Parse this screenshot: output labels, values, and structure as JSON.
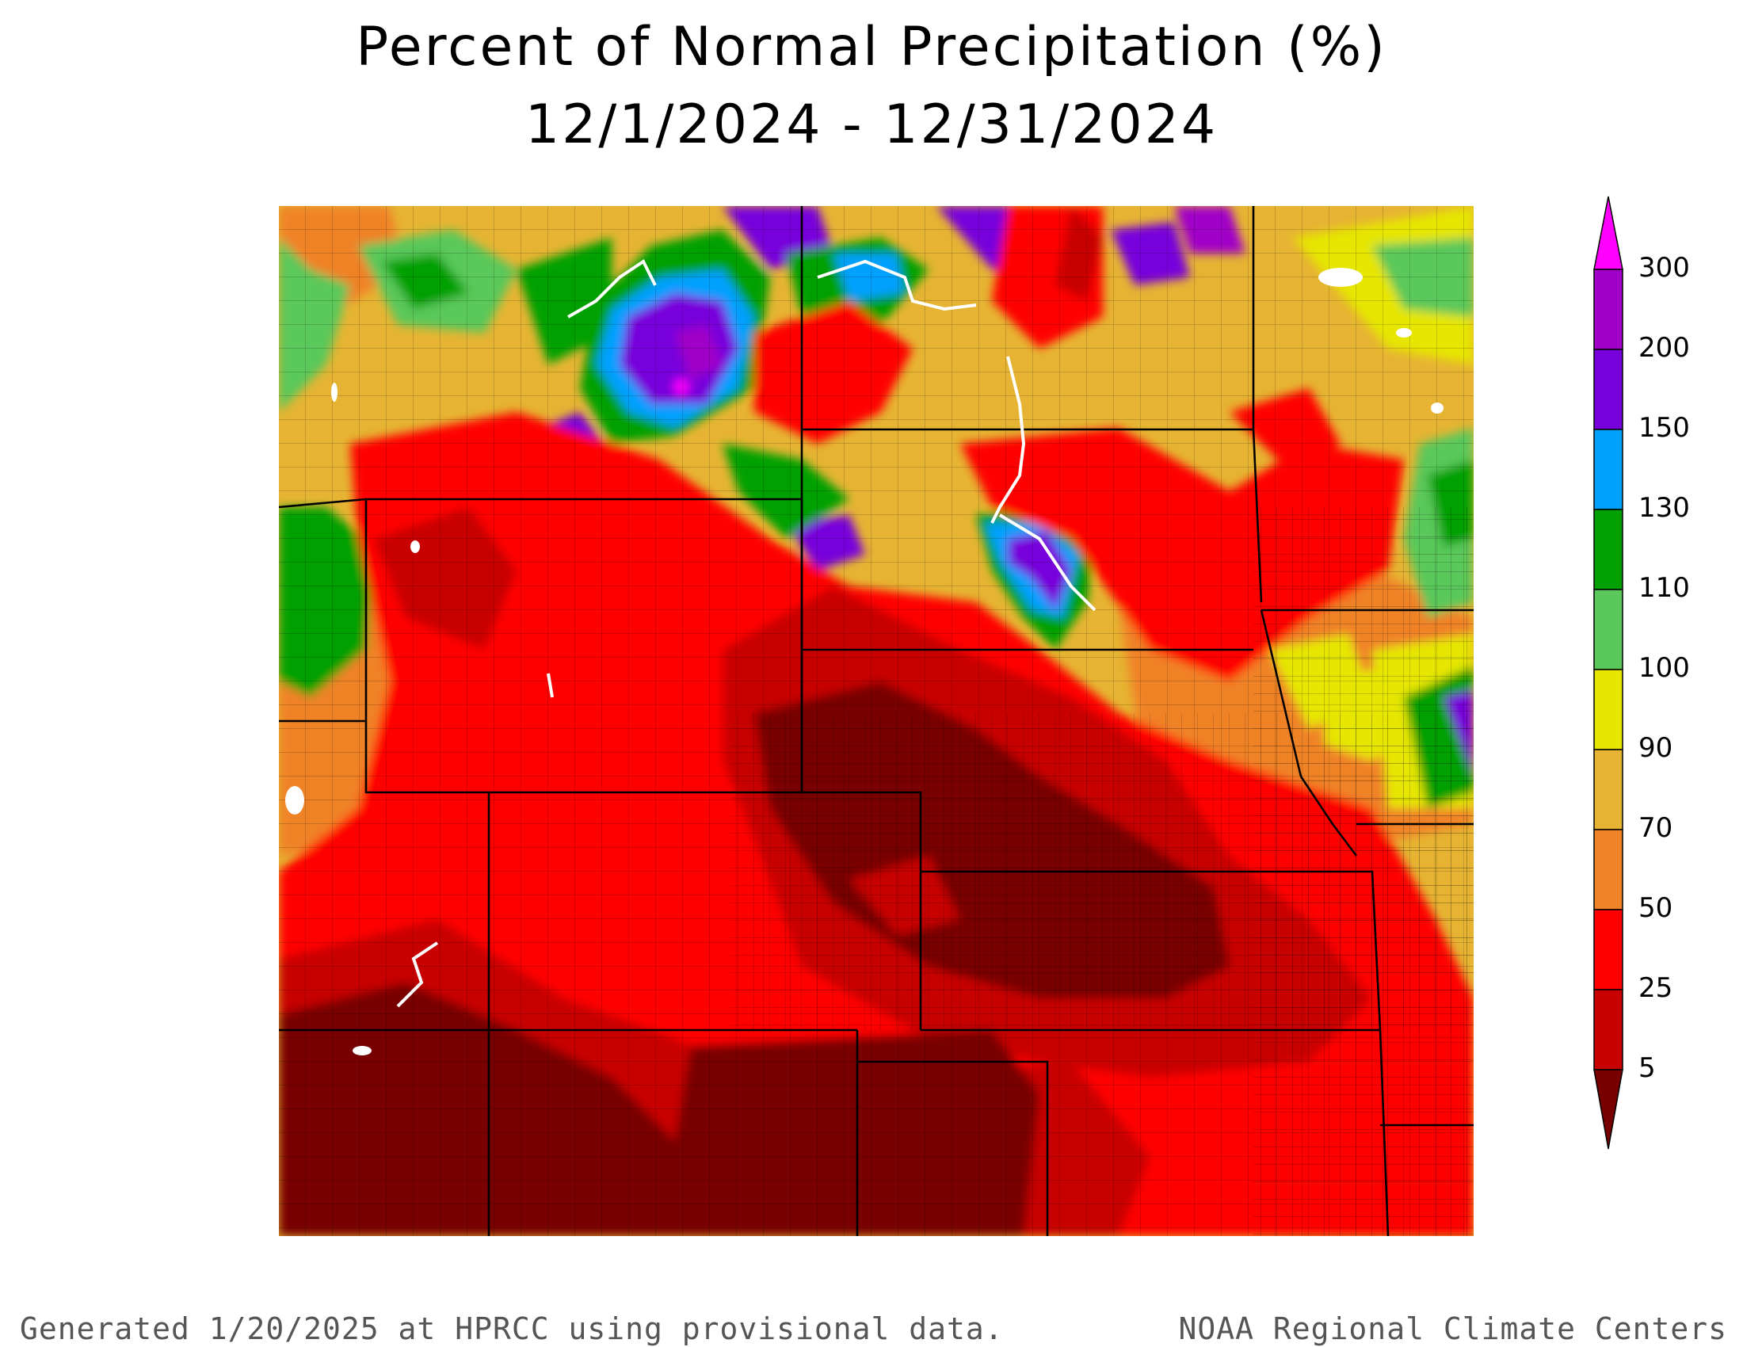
{
  "header": {
    "title": "Percent of Normal Precipitation (%)",
    "date_range": "12/1/2024 - 12/31/2024"
  },
  "legend": {
    "levels": [
      {
        "value": "300",
        "color": "#ff00ff"
      },
      {
        "value": "200",
        "color": "#a000c8"
      },
      {
        "value": "150",
        "color": "#7800dc"
      },
      {
        "value": "130",
        "color": "#00a0ff"
      },
      {
        "value": "110",
        "color": "#00a000"
      },
      {
        "value": "100",
        "color": "#5ac85a"
      },
      {
        "value": "90",
        "color": "#e6e600"
      },
      {
        "value": "70",
        "color": "#e6b432"
      },
      {
        "value": "50",
        "color": "#f08228"
      },
      {
        "value": "25",
        "color": "#ff0000"
      },
      {
        "value": "5",
        "color": "#c80000"
      }
    ],
    "below_min_color": "#780000"
  },
  "footer": {
    "left": "Generated 1/20/2025 at HPRCC using provisional data.",
    "right": "NOAA Regional Climate Centers"
  }
}
